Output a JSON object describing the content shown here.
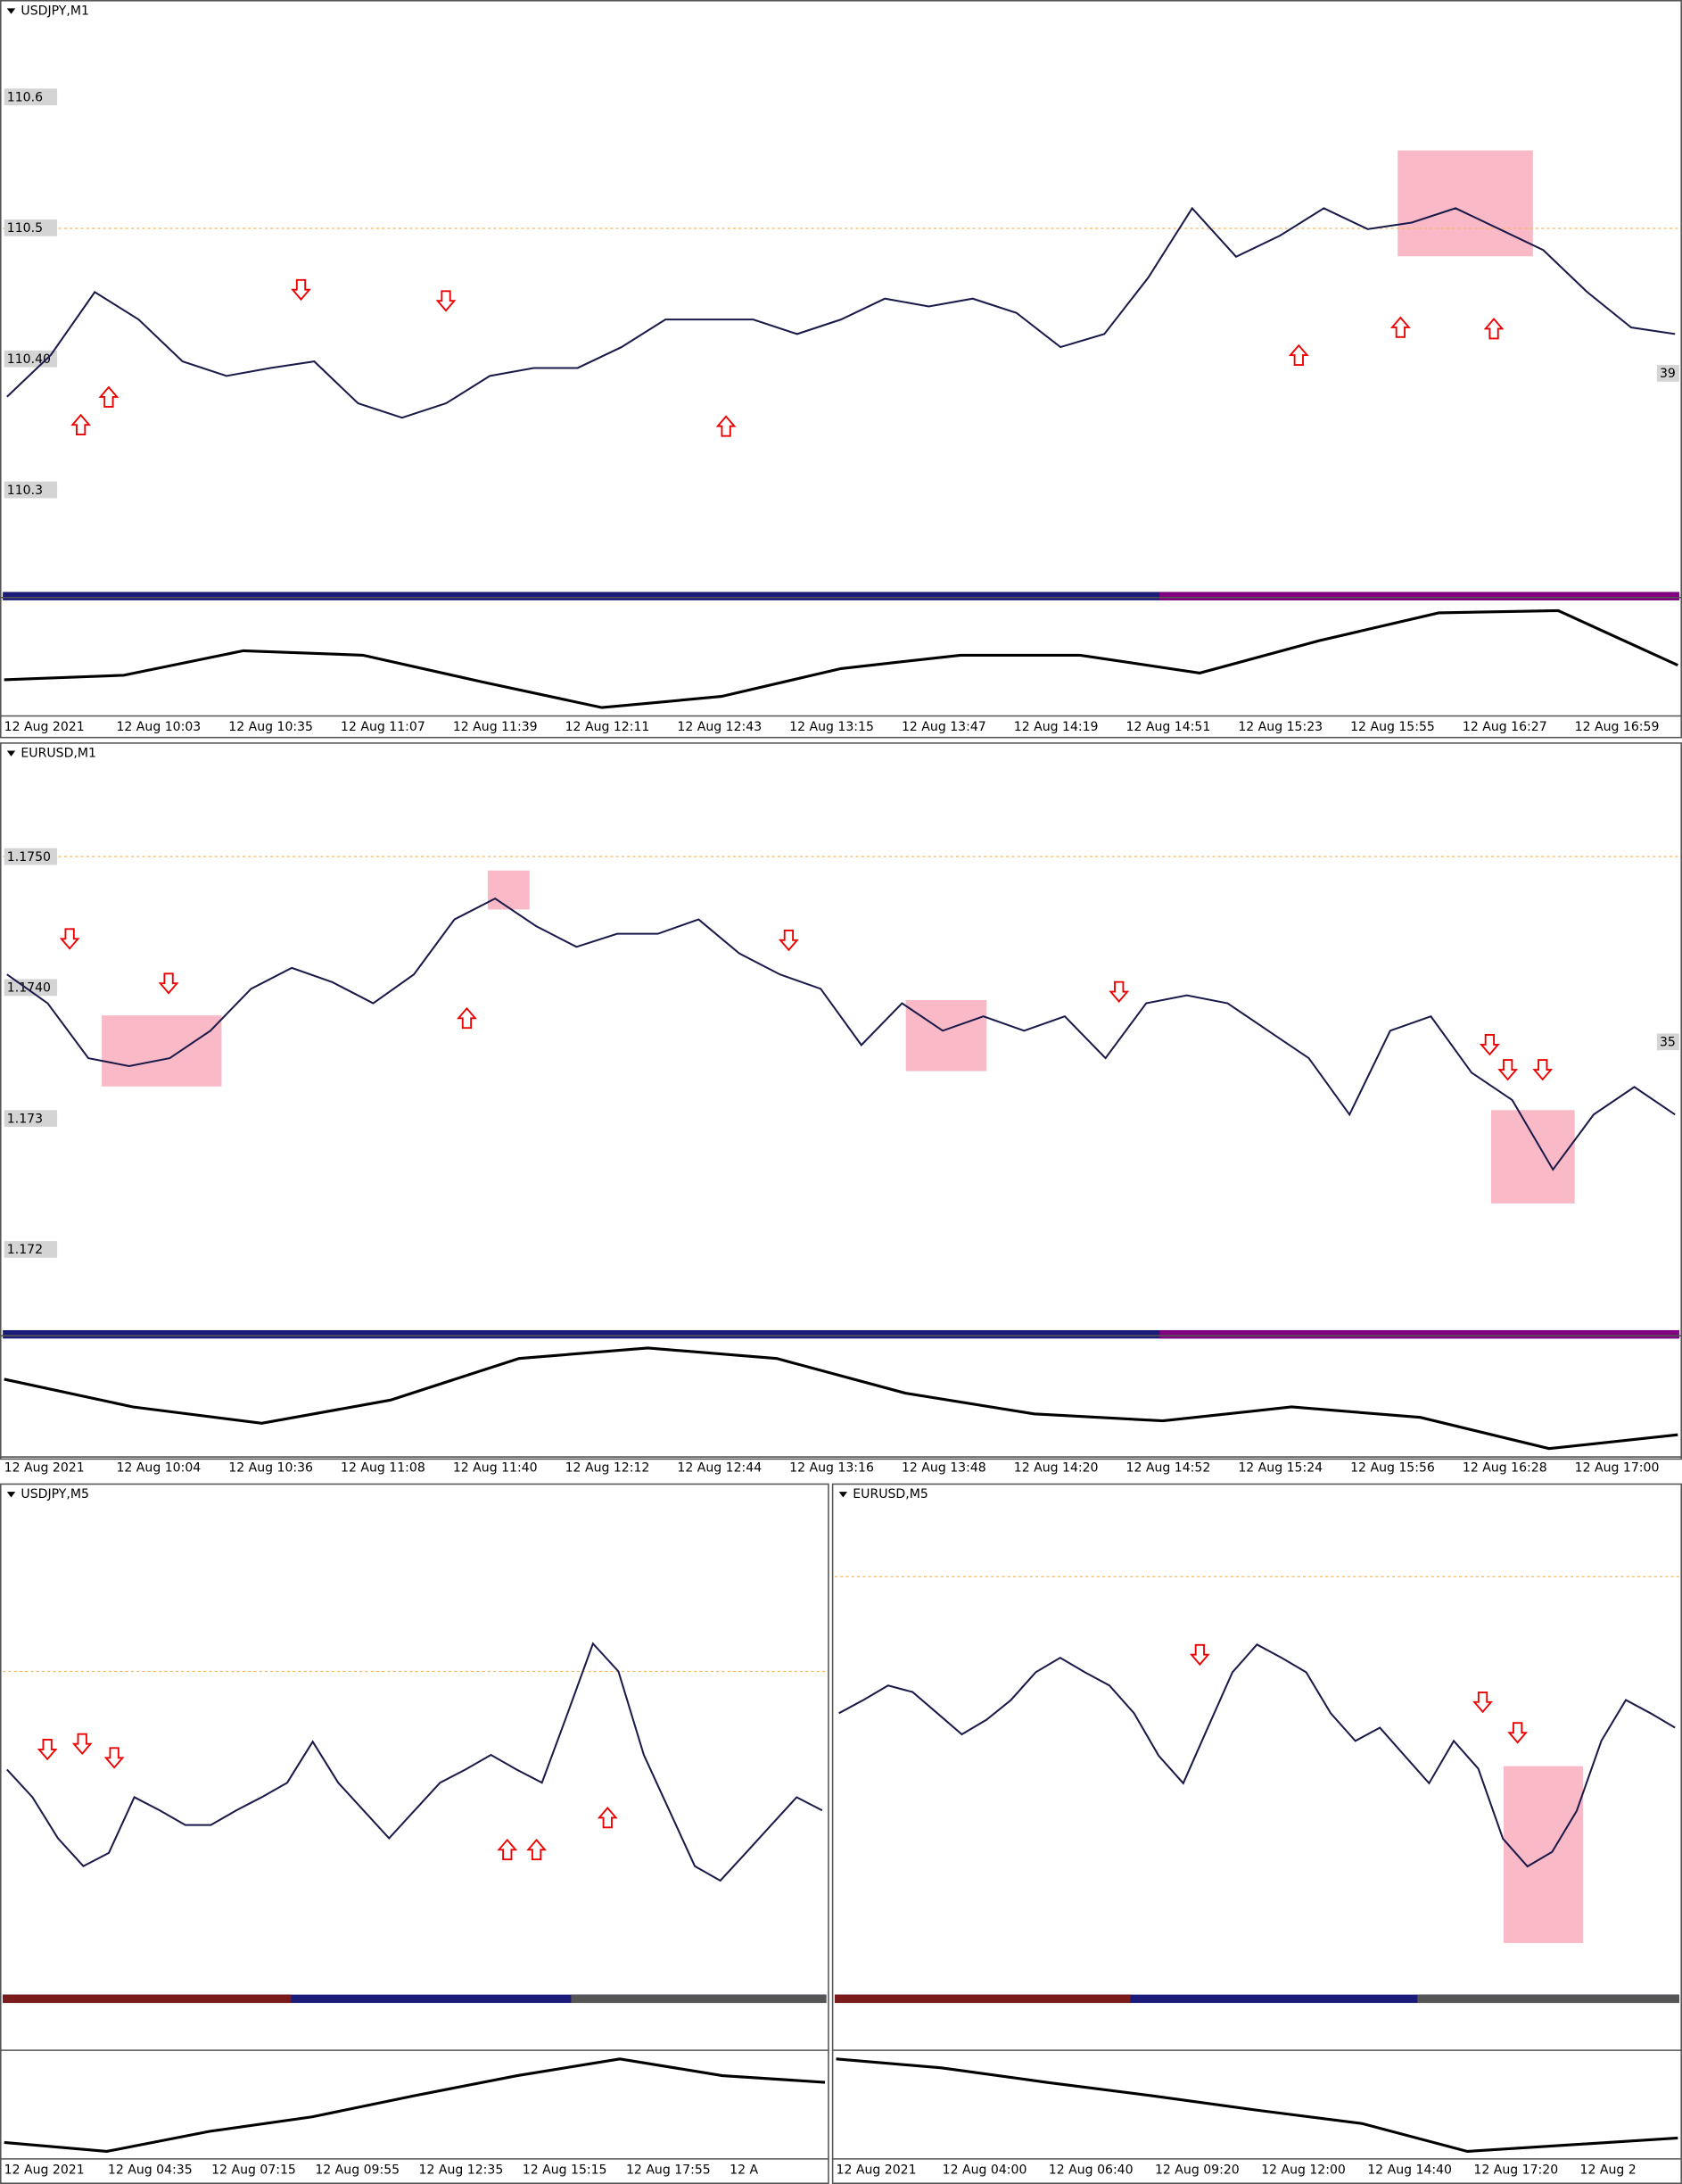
{
  "panels": [
    {
      "title": "USDJPY,M1",
      "ylim": [
        110.222,
        110.674
      ],
      "price_labels": [
        110.6,
        110.5,
        {
          "value": 110.4,
          "label": "110.40"
        },
        110.3
      ],
      "right_tag": "39",
      "time_labels": [
        "12 Aug 2021",
        "12 Aug 10:03",
        "12 Aug 10:35",
        "12 Aug 11:07",
        "12 Aug 11:39",
        "12 Aug 12:11",
        "12 Aug 12:43",
        "12 Aug 13:15",
        "12 Aug 13:47",
        "12 Aug 14:19",
        "12 Aug 14:51",
        "12 Aug 15:23",
        "12 Aug 15:55",
        "12 Aug 16:27",
        "12 Aug 16:59"
      ],
      "close": [
        110.371,
        110.403,
        110.451,
        110.43,
        110.398,
        110.387,
        110.393,
        110.398,
        110.366,
        110.355,
        110.366,
        110.387,
        110.393,
        110.393,
        110.409,
        110.43,
        110.43,
        110.43,
        110.419,
        110.43,
        110.446,
        110.44,
        110.446,
        110.435,
        110.409,
        110.419,
        110.462,
        110.515,
        110.478,
        110.494,
        110.515,
        110.499,
        110.504,
        110.515,
        110.499,
        110.483,
        110.451,
        110.424,
        110.419
      ],
      "oscillator": {
        "ylim": [
          0,
          100
        ],
        "values": [
          30,
          34,
          56,
          52,
          28,
          5,
          15,
          40,
          52,
          52,
          36,
          65,
          90,
          92,
          43
        ]
      }
    },
    {
      "title": "EURUSD,M1",
      "ylim": [
        1.171383,
        1.175872
      ],
      "price_labels": [
        {
          "value": 1.175,
          "label": "1.1750"
        },
        {
          "value": 1.174,
          "label": "1.1740"
        },
        1.173,
        1.172
      ],
      "right_tag": "35",
      "time_labels": [
        "12 Aug 2021",
        "12 Aug 10:04",
        "12 Aug 10:36",
        "12 Aug 11:08",
        "12 Aug 11:40",
        "12 Aug 12:12",
        "12 Aug 12:44",
        "12 Aug 13:16",
        "12 Aug 13:48",
        "12 Aug 14:20",
        "12 Aug 14:52",
        "12 Aug 15:24",
        "12 Aug 15:56",
        "12 Aug 16:28",
        "12 Aug 17:00"
      ],
      "close": [
        1.1741,
        1.17388,
        1.17346,
        1.1734,
        1.17346,
        1.17367,
        1.17399,
        1.17415,
        1.17404,
        1.17388,
        1.1741,
        1.17452,
        1.17468,
        1.17447,
        1.17431,
        1.17441,
        1.17441,
        1.17452,
        1.17426,
        1.1741,
        1.17399,
        1.17356,
        1.17388,
        1.17367,
        1.17378,
        1.17367,
        1.17378,
        1.17346,
        1.17388,
        1.17394,
        1.17388,
        1.17367,
        1.17346,
        1.17303,
        1.17367,
        1.17378,
        1.17335,
        1.17314,
        1.17261,
        1.17303,
        1.17324,
        1.17303
      ],
      "oscillator": {
        "ylim": [
          0,
          100
        ],
        "values": [
          66,
          42,
          28,
          48,
          84,
          93,
          84,
          54,
          36,
          30,
          42,
          33,
          6,
          18
        ]
      }
    },
    {
      "title": "USDJPY,M5",
      "ylim": [
        110.256,
        110.642
      ],
      "time_labels": [
        "12 Aug 2021",
        "12 Aug 04:35",
        "12 Aug 07:15",
        "12 Aug 09:55",
        "12 Aug 12:35",
        "12 Aug 15:15",
        "12 Aug 17:55",
        "12 A"
      ],
      "close": [
        110.426,
        110.405,
        110.374,
        110.353,
        110.363,
        110.405,
        110.395,
        110.384,
        110.384,
        110.395,
        110.405,
        110.416,
        110.447,
        110.416,
        110.395,
        110.374,
        110.395,
        110.416,
        110.426,
        110.437,
        110.426,
        110.416,
        110.468,
        110.521,
        110.5,
        110.437,
        110.395,
        110.353,
        110.342,
        110.363,
        110.384,
        110.405,
        110.395
      ],
      "oscillator": {
        "ylim": [
          0,
          100
        ],
        "values": [
          21,
          13,
          31,
          44,
          63,
          81,
          96,
          81,
          75
        ]
      }
    },
    {
      "title": "EURUSD,M5",
      "ylim": [
        1.17184,
        1.17571
      ],
      "time_labels": [
        "12 Aug 2021",
        "12 Aug 04:00",
        "12 Aug 06:40",
        "12 Aug 09:20",
        "12 Aug 12:00",
        "12 Aug 14:40",
        "12 Aug 17:20",
        "12 Aug 2"
      ],
      "close": [
        1.17397,
        1.17407,
        1.17418,
        1.17413,
        1.17397,
        1.17381,
        1.17392,
        1.17407,
        1.17428,
        1.17439,
        1.17428,
        1.17418,
        1.17397,
        1.17365,
        1.17344,
        1.17386,
        1.17428,
        1.17449,
        1.17439,
        1.17428,
        1.17397,
        1.17376,
        1.17386,
        1.17365,
        1.17344,
        1.17376,
        1.17355,
        1.17302,
        1.17281,
        1.17292,
        1.17323,
        1.17376,
        1.17407,
        1.17397,
        1.17386
      ],
      "oscillator": {
        "ylim": [
          0,
          100
        ],
        "values": [
          96,
          88,
          75,
          63,
          50,
          38,
          13,
          19,
          25
        ]
      }
    }
  ]
}
